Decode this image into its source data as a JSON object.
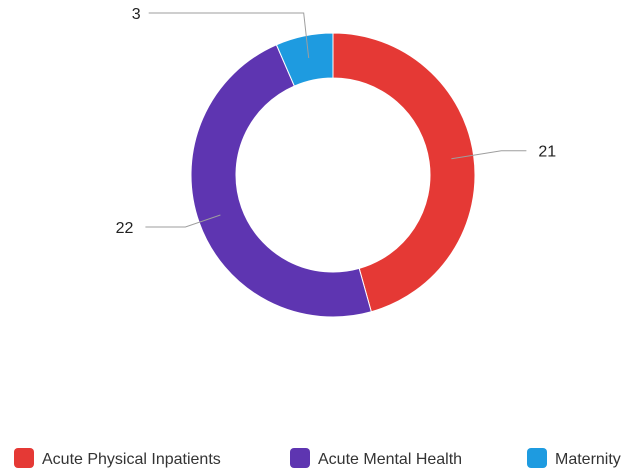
{
  "chart_data": {
    "type": "pie",
    "variant": "donut",
    "categories": [
      "Acute Physical Inpatients",
      "Acute Mental Health",
      "Maternity"
    ],
    "values": [
      21,
      22,
      3
    ],
    "colors": [
      "#e53935",
      "#5e35b1",
      "#1e9be0"
    ],
    "data_labels": [
      "21",
      "22",
      "3"
    ],
    "legend_position": "bottom"
  }
}
